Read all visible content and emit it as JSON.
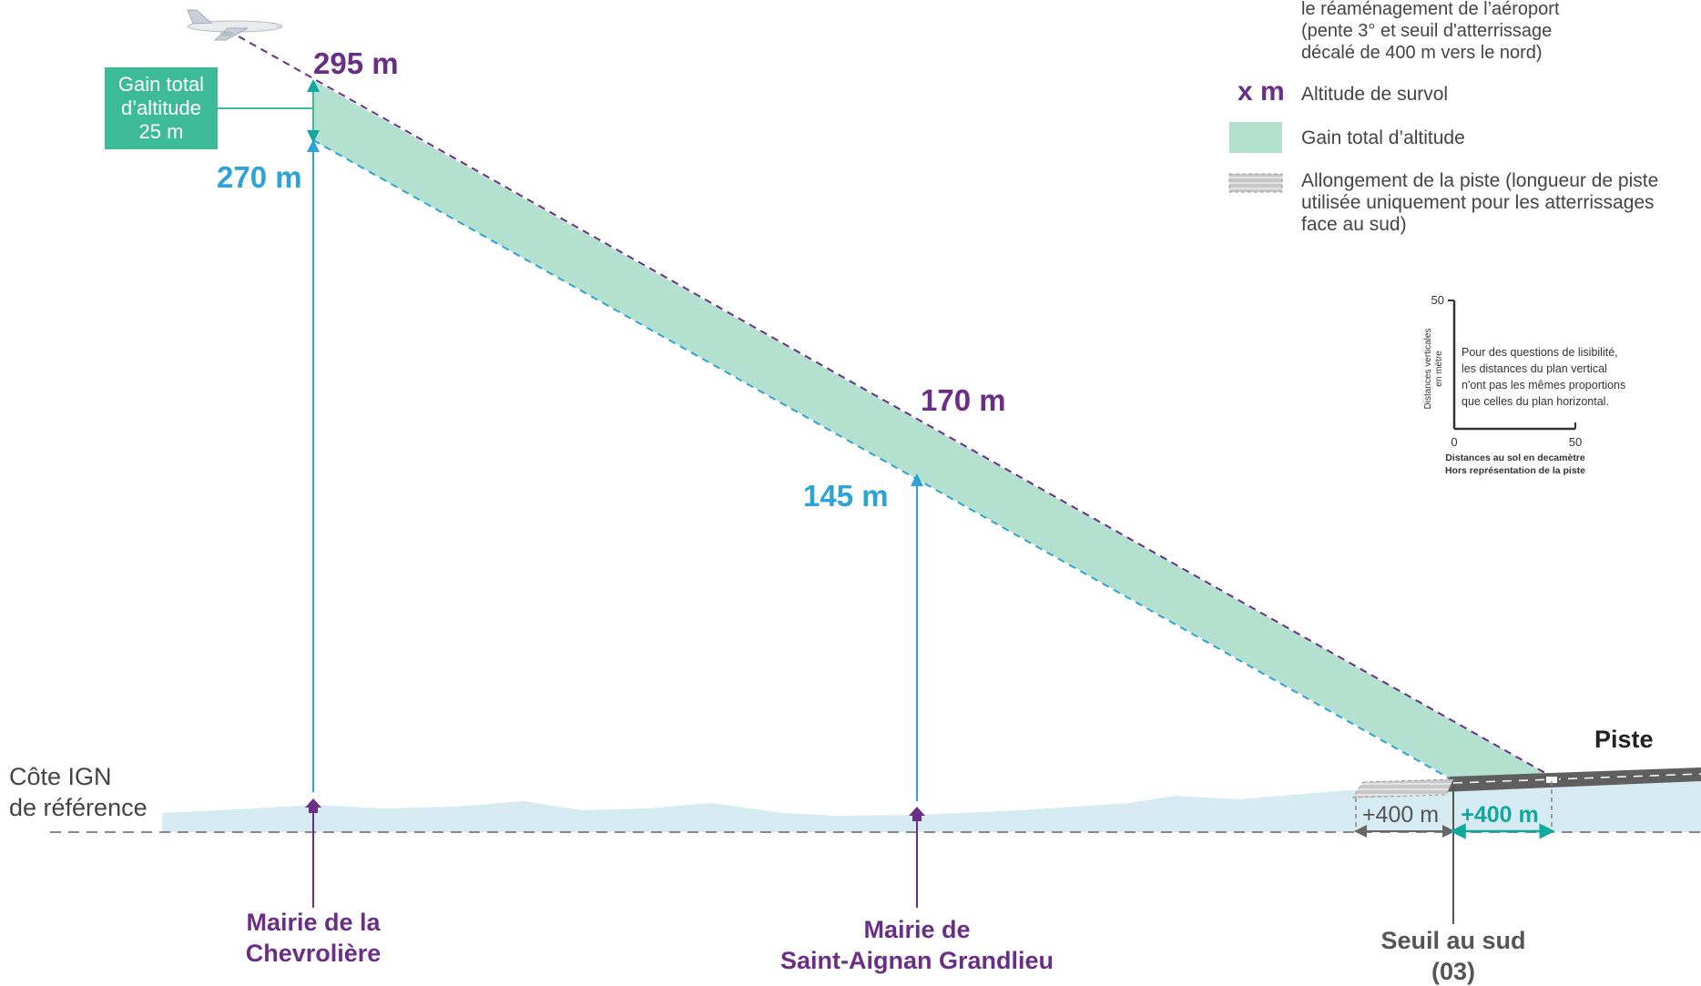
{
  "colors": {
    "purple": "#6b2e86",
    "blue": "#2ea3d6",
    "green_band": "#b3e0cf",
    "green_box": "#3dbb99",
    "terrain": "#d6eaf1",
    "dark": "#555555"
  },
  "legend": {
    "heading_lines": [
      "le réaménagement de l’aéroport",
      "(pente 3° et seuil d'atterrissage",
      "décalé de 400 m vers le nord)"
    ],
    "xm_symbol": "x m",
    "xm_label": "Altitude de survol",
    "gain_label": "Gain total d’altitude",
    "runway_ext_lines": [
      "Allongement de la piste (longueur de piste",
      "utilisée uniquement pour les atterrissages",
      "face au sud)"
    ]
  },
  "scale_inset": {
    "y_tick_top": "50",
    "y_axis_lines": [
      "Distances verticales",
      "en mètre"
    ],
    "origin": "0",
    "x_tick_right": "50",
    "note_lines": [
      "Pour des questions de lisibilité,",
      "les distances du plan vertical",
      "n'ont pas les mêmes proportions",
      "que celles du plan horizontal."
    ],
    "x_axis_lines": [
      "Distances au sol en decamètre",
      "Hors représentation de la piste"
    ]
  },
  "gain_box_lines": [
    "Gain total",
    "d’altitude",
    "25 m"
  ],
  "altitudes": {
    "chevroliere_new": "295 m",
    "chevroliere_old": "270 m",
    "saint_aignan_new": "170 m",
    "saint_aignan_old": "145 m"
  },
  "reference": {
    "line1": "Côte IGN",
    "line2": "de référence"
  },
  "runway_label": "Piste",
  "offsets": {
    "left": "+400 m",
    "right": "+400 m"
  },
  "places": {
    "chevroliere_lines": [
      "Mairie de la",
      "Chevrolière"
    ],
    "saint_aignan_lines": [
      "Mairie de",
      "Saint-Aignan Grandlieu"
    ],
    "threshold_lines": [
      "Seuil au sud",
      "(03)"
    ]
  },
  "icons": {
    "aircraft": "airplane-icon",
    "house": "house-icon"
  }
}
